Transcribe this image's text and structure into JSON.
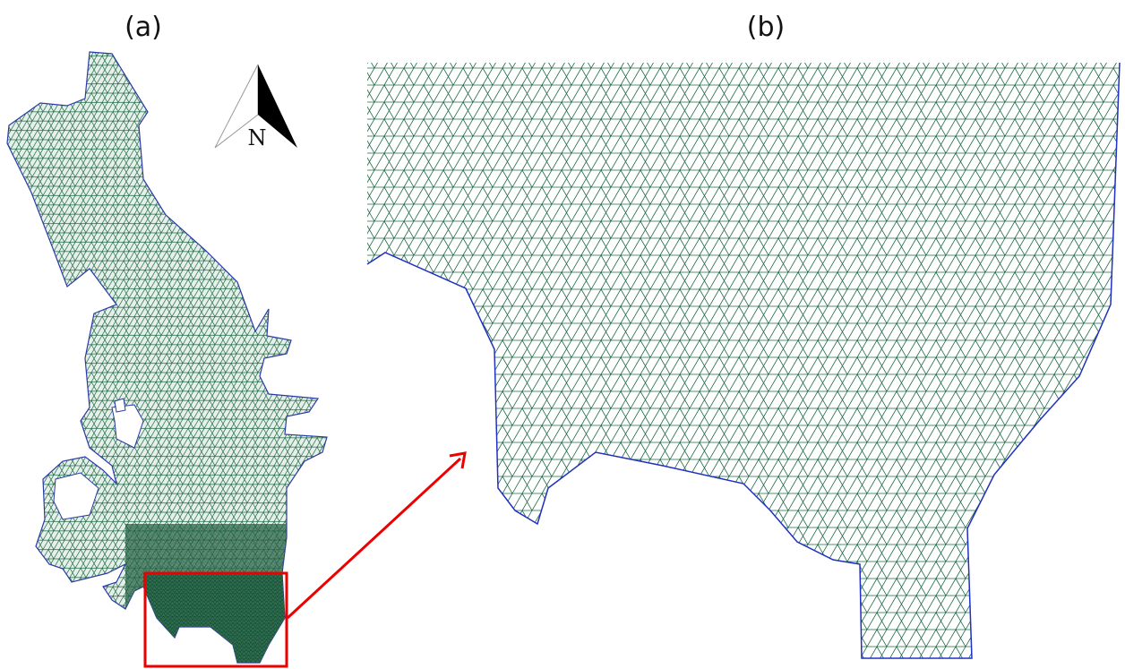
{
  "panels": [
    {
      "label": "(a)"
    },
    {
      "label": "(b)"
    }
  ],
  "compass": {
    "label": "N"
  }
}
